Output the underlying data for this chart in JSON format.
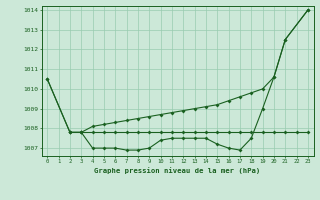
{
  "background_color": "#cce8d8",
  "grid_color": "#99ccb0",
  "line_color": "#1a6020",
  "xlabel_label": "Graphe pression niveau de la mer (hPa)",
  "xlim": [
    -0.5,
    23.5
  ],
  "ylim": [
    1006.6,
    1014.2
  ],
  "xticks": [
    0,
    1,
    2,
    3,
    4,
    5,
    6,
    7,
    8,
    9,
    10,
    11,
    12,
    13,
    14,
    15,
    16,
    17,
    18,
    19,
    20,
    21,
    22,
    23
  ],
  "yticks": [
    1007,
    1008,
    1009,
    1010,
    1011,
    1012,
    1013,
    1014
  ],
  "line1_x": [
    0,
    2,
    3,
    4,
    5,
    6,
    7,
    8,
    9,
    10,
    11,
    12,
    13,
    14,
    15,
    16,
    17,
    18,
    19,
    20,
    21,
    23
  ],
  "line1_y": [
    1010.5,
    1007.8,
    1007.8,
    1008.1,
    1008.2,
    1008.3,
    1008.4,
    1008.5,
    1008.6,
    1008.7,
    1008.8,
    1008.9,
    1009.0,
    1009.1,
    1009.2,
    1009.4,
    1009.6,
    1009.8,
    1010.0,
    1010.6,
    1012.5,
    1014.0
  ],
  "line2_x": [
    2,
    3,
    4,
    5,
    6,
    7,
    8,
    9,
    10,
    11,
    12,
    13,
    14,
    15,
    16,
    17,
    18,
    19,
    20,
    21,
    22,
    23
  ],
  "line2_y": [
    1007.8,
    1007.8,
    1007.8,
    1007.8,
    1007.8,
    1007.8,
    1007.8,
    1007.8,
    1007.8,
    1007.8,
    1007.8,
    1007.8,
    1007.8,
    1007.8,
    1007.8,
    1007.8,
    1007.8,
    1007.8,
    1007.8,
    1007.8,
    1007.8,
    1007.8
  ],
  "line3_x": [
    0,
    2,
    3,
    4,
    5,
    6,
    7,
    8,
    9,
    10,
    11,
    12,
    13,
    14,
    15,
    16,
    17,
    18,
    19,
    20,
    21,
    23
  ],
  "line3_y": [
    1010.5,
    1007.8,
    1007.8,
    1007.0,
    1007.0,
    1007.0,
    1006.9,
    1006.9,
    1007.0,
    1007.4,
    1007.5,
    1007.5,
    1007.5,
    1007.5,
    1007.2,
    1007.0,
    1006.9,
    1007.5,
    1009.0,
    1010.6,
    1012.5,
    1014.0
  ]
}
